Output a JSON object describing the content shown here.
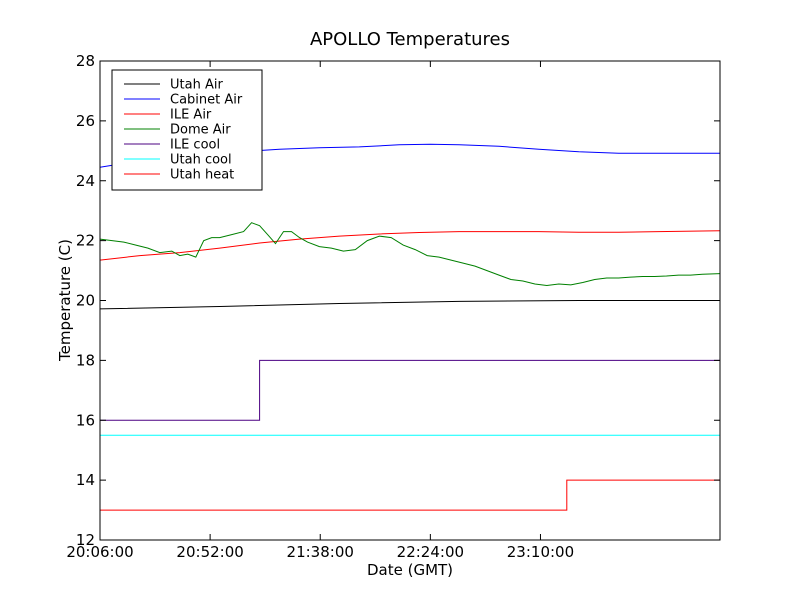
{
  "chart_data": {
    "type": "line",
    "title": "APOLLO Temperatures",
    "xlabel": "Date (GMT)",
    "ylabel": "Temperature (C)",
    "xlim": [
      0,
      15540
    ],
    "ylim": [
      12,
      28
    ],
    "xticks": [
      0,
      2760,
      5520,
      8280,
      11040
    ],
    "xtick_labels": [
      "20:06:00",
      "20:52:00",
      "21:38:00",
      "22:24:00",
      "23:10:00"
    ],
    "yticks": [
      12,
      14,
      16,
      18,
      20,
      22,
      24,
      26,
      28
    ],
    "ytick_labels": [
      "12",
      "14",
      "16",
      "18",
      "20",
      "22",
      "24",
      "26",
      "28"
    ],
    "grid": false,
    "legend_position": "top-left",
    "series": [
      {
        "name": "Utah Air",
        "color": "#000000",
        "x": [
          0,
          3000,
          6000,
          9000,
          12000,
          15540
        ],
        "y": [
          19.72,
          19.8,
          19.9,
          19.97,
          20.0,
          20.0
        ]
      },
      {
        "name": "Cabinet Air",
        "color": "#0000ff",
        "x": [
          0,
          700,
          1500,
          2500,
          3500,
          4500,
          5500,
          6500,
          7500,
          8280,
          9000,
          10000,
          11000,
          12000,
          13000,
          14000,
          15540
        ],
        "y": [
          24.45,
          24.6,
          24.75,
          24.85,
          24.97,
          25.05,
          25.1,
          25.13,
          25.2,
          25.22,
          25.2,
          25.15,
          25.05,
          24.97,
          24.92,
          24.92,
          24.92
        ]
      },
      {
        "name": "ILE Air",
        "color": "#ff0000",
        "x": [
          0,
          1000,
          2000,
          3000,
          4000,
          5000,
          6000,
          7000,
          8000,
          9000,
          10000,
          11000,
          12000,
          13000,
          14000,
          15540
        ],
        "y": [
          21.35,
          21.5,
          21.6,
          21.75,
          21.92,
          22.05,
          22.15,
          22.22,
          22.27,
          22.3,
          22.3,
          22.3,
          22.28,
          22.28,
          22.3,
          22.33
        ]
      },
      {
        "name": "Dome Air",
        "color": "#008000",
        "x": [
          0,
          300,
          600,
          900,
          1200,
          1500,
          1800,
          2000,
          2200,
          2400,
          2600,
          2800,
          3000,
          3300,
          3600,
          3800,
          4000,
          4200,
          4400,
          4600,
          4800,
          5000,
          5200,
          5500,
          5800,
          6100,
          6400,
          6700,
          7000,
          7300,
          7600,
          7900,
          8200,
          8500,
          8800,
          9100,
          9400,
          9700,
          10000,
          10300,
          10600,
          10900,
          11200,
          11500,
          11800,
          12100,
          12400,
          12700,
          13000,
          13300,
          13600,
          13900,
          14200,
          14500,
          14800,
          15100,
          15540
        ],
        "y": [
          22.05,
          22.0,
          21.95,
          21.85,
          21.75,
          21.6,
          21.65,
          21.5,
          21.55,
          21.45,
          22.0,
          22.1,
          22.1,
          22.2,
          22.3,
          22.6,
          22.5,
          22.2,
          21.9,
          22.3,
          22.3,
          22.1,
          21.95,
          21.8,
          21.75,
          21.65,
          21.7,
          22.0,
          22.15,
          22.1,
          21.85,
          21.7,
          21.5,
          21.45,
          21.35,
          21.25,
          21.15,
          21.0,
          20.85,
          20.7,
          20.65,
          20.55,
          20.5,
          20.55,
          20.52,
          20.6,
          20.7,
          20.75,
          20.75,
          20.78,
          20.8,
          20.8,
          20.82,
          20.85,
          20.85,
          20.88,
          20.9
        ]
      },
      {
        "name": "ILE cool",
        "color": "#4b0082",
        "step": true,
        "x": [
          0,
          4000,
          4000,
          15540
        ],
        "y": [
          16,
          16,
          18,
          18
        ]
      },
      {
        "name": "Utah cool",
        "color": "#00ffff",
        "x": [
          0,
          15540
        ],
        "y": [
          15.5,
          15.5
        ]
      },
      {
        "name": "Utah heat",
        "color": "#ff0000",
        "step": true,
        "x": [
          0,
          11700,
          11700,
          15540
        ],
        "y": [
          13,
          13,
          14,
          14
        ]
      }
    ]
  }
}
